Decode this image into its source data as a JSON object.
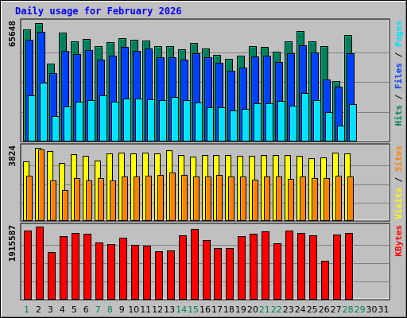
{
  "chart_data": {
    "type": "bar",
    "title": "Daily usage for February 2026",
    "x": [
      "1",
      "2",
      "3",
      "4",
      "5",
      "6",
      "7",
      "8",
      "9",
      "10",
      "11",
      "12",
      "13",
      "14",
      "15",
      "16",
      "17",
      "18",
      "19",
      "20",
      "21",
      "22",
      "23",
      "24",
      "25",
      "26",
      "27",
      "28",
      "29",
      "30",
      "31"
    ],
    "weekend_days": [
      "1",
      "7",
      "8",
      "14",
      "15",
      "21",
      "22",
      "28",
      "29"
    ],
    "panels": [
      {
        "id": "hits",
        "scale_label": "65648",
        "ymax": 65648,
        "legend": [
          "Pages",
          "Files",
          "Hits"
        ],
        "legend_separator": " / ",
        "series": [
          {
            "name": "Hits",
            "color": "#00805c",
            "values": [
              61900,
              65000,
              43100,
              60100,
              55300,
              56600,
              52700,
              54600,
              57000,
              56000,
              55800,
              52700,
              52600,
              50700,
              54300,
              51300,
              47700,
              45400,
              47300,
              52500,
              52200,
              49500,
              55000,
              60800,
              55200,
              52700,
              33400,
              58600,
              0,
              0,
              0
            ]
          },
          {
            "name": "Files",
            "color": "#0040ff",
            "values": [
              55900,
              60400,
              37800,
              49800,
              48300,
              50300,
              44900,
              47300,
              51900,
              49800,
              51000,
              46400,
              46400,
              45000,
              48500,
              46300,
              43500,
              39100,
              40900,
              46800,
              47200,
              43600,
              48700,
              53100,
              49000,
              34100,
              30000,
              48700,
              0,
              0,
              0
            ]
          },
          {
            "name": "Pages",
            "color": "#00e0ff",
            "values": [
              25300,
              32600,
              14100,
              19200,
              21700,
              22600,
              25500,
              21900,
              23700,
              23600,
              23000,
              22600,
              24400,
              22700,
              21500,
              19000,
              18800,
              17100,
              18100,
              20800,
              21000,
              22500,
              19600,
              26600,
              22900,
              16400,
              8700,
              20400,
              0,
              0,
              0
            ]
          }
        ]
      },
      {
        "id": "sites",
        "scale_label": "3824",
        "ymax": 3824,
        "legend": [
          "Sites",
          "Visits"
        ],
        "legend_separator": " / ",
        "series": [
          {
            "name": "Visits",
            "color": "#ffff00",
            "values": [
              3100,
              3800,
              3600,
              3000,
              3460,
              3390,
              3130,
              3500,
              3540,
              3500,
              3530,
              3500,
              3650,
              3410,
              3350,
              3400,
              3400,
              3400,
              3380,
              3390,
              3400,
              3400,
              3430,
              3390,
              3230,
              3300,
              3520,
              3500,
              0,
              0,
              0
            ]
          },
          {
            "name": "Sites",
            "color": "#ff8000",
            "values": [
              2350,
              3700,
              2100,
              1600,
              2200,
              2100,
              2200,
              2090,
              2300,
              2310,
              2350,
              2400,
              2500,
              2400,
              2300,
              2300,
              2400,
              2300,
              2300,
              2150,
              2300,
              2290,
              2160,
              2300,
              2200,
              2200,
              2340,
              2300,
              0,
              0,
              0
            ]
          }
        ]
      },
      {
        "id": "kbytes",
        "scale_label": "1915587",
        "ymax": 1915587,
        "legend": [
          "KBytes"
        ],
        "legend_separator": "",
        "series": [
          {
            "name": "KBytes",
            "color": "#ff0000",
            "values": [
              1810000,
              1915587,
              1250000,
              1660000,
              1750000,
              1730000,
              1500000,
              1450000,
              1620000,
              1440000,
              1410000,
              1280000,
              1300000,
              1690000,
              1860000,
              1560000,
              1350000,
              1360000,
              1660000,
              1720000,
              1800000,
              1480000,
              1810000,
              1740000,
              1680000,
              1030000,
              1700000,
              1750000,
              0,
              0,
              0
            ]
          }
        ]
      }
    ]
  }
}
